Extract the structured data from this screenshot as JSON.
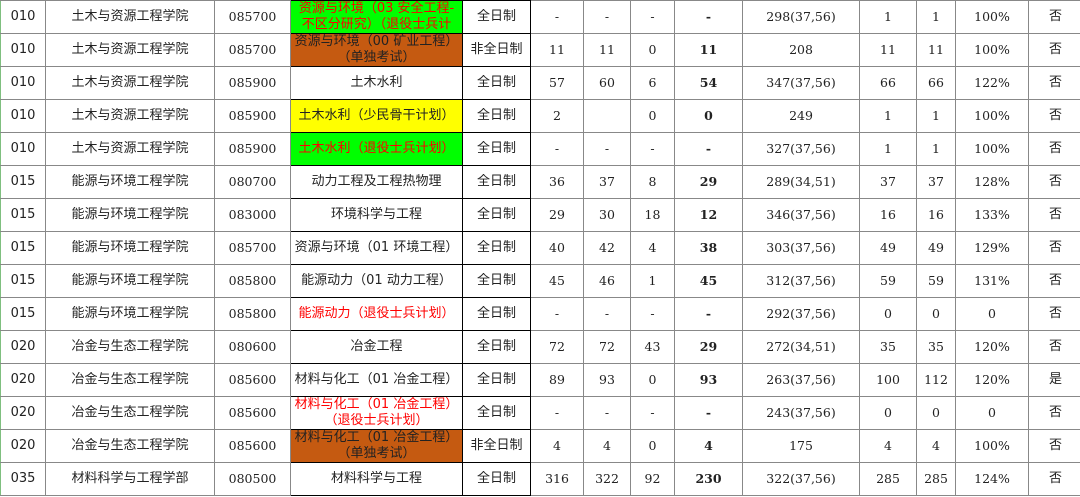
{
  "colors": {
    "green": "#00ff00",
    "brown": "#c55a11",
    "yellow": "#ffff00",
    "red": "#ff0000"
  },
  "rows": [
    {
      "code": "010",
      "college": "土木与资源工程学院",
      "major_code": "085700",
      "major": "资源与环境（03 安全工程-不区分研究）（退役士兵计划）",
      "style": "green-red",
      "type": "全日制",
      "c1": "-",
      "c2": "-",
      "c3": "-",
      "c4": "-",
      "score": "298(37,56)",
      "c5": "1",
      "c6": "1",
      "pct": "100%",
      "flag": "否"
    },
    {
      "code": "010",
      "college": "土木与资源工程学院",
      "major_code": "085700",
      "major": "资源与环境（00 矿业工程）（单独考试）",
      "style": "brown",
      "type": "非全日制",
      "c1": "11",
      "c2": "11",
      "c3": "0",
      "c4": "11",
      "score": "208",
      "c5": "11",
      "c6": "11",
      "pct": "100%",
      "flag": "否"
    },
    {
      "code": "010",
      "college": "土木与资源工程学院",
      "major_code": "085900",
      "major": "土木水利",
      "style": "",
      "type": "全日制",
      "c1": "57",
      "c2": "60",
      "c3": "6",
      "c4": "54",
      "score": "347(37,56)",
      "c5": "66",
      "c6": "66",
      "pct": "122%",
      "flag": "否"
    },
    {
      "code": "010",
      "college": "土木与资源工程学院",
      "major_code": "085900",
      "major": "土木水利（少民骨干计划）",
      "style": "yellow",
      "type": "全日制",
      "c1": "2",
      "c2": "",
      "c3": "0",
      "c4": "0",
      "score": "249",
      "c5": "1",
      "c6": "1",
      "pct": "100%",
      "flag": "否"
    },
    {
      "code": "010",
      "college": "土木与资源工程学院",
      "major_code": "085900",
      "major": "土木水利（退役士兵计划）",
      "style": "green-red",
      "type": "全日制",
      "c1": "-",
      "c2": "-",
      "c3": "-",
      "c4": "-",
      "score": "327(37,56)",
      "c5": "1",
      "c6": "1",
      "pct": "100%",
      "flag": "否"
    },
    {
      "code": "015",
      "college": "能源与环境工程学院",
      "major_code": "080700",
      "major": "动力工程及工程热物理",
      "style": "",
      "type": "全日制",
      "c1": "36",
      "c2": "37",
      "c3": "8",
      "c4": "29",
      "score": "289(34,51)",
      "c5": "37",
      "c6": "37",
      "pct": "128%",
      "flag": "否"
    },
    {
      "code": "015",
      "college": "能源与环境工程学院",
      "major_code": "083000",
      "major": "环境科学与工程",
      "style": "",
      "type": "全日制",
      "c1": "29",
      "c2": "30",
      "c3": "18",
      "c4": "12",
      "score": "346(37,56)",
      "c5": "16",
      "c6": "16",
      "pct": "133%",
      "flag": "否"
    },
    {
      "code": "015",
      "college": "能源与环境工程学院",
      "major_code": "085700",
      "major": "资源与环境（01 环境工程）",
      "style": "",
      "type": "全日制",
      "c1": "40",
      "c2": "42",
      "c3": "4",
      "c4": "38",
      "score": "303(37,56)",
      "c5": "49",
      "c6": "49",
      "pct": "129%",
      "flag": "否"
    },
    {
      "code": "015",
      "college": "能源与环境工程学院",
      "major_code": "085800",
      "major": "能源动力（01 动力工程）",
      "style": "",
      "type": "全日制",
      "c1": "45",
      "c2": "46",
      "c3": "1",
      "c4": "45",
      "score": "312(37,56)",
      "c5": "59",
      "c6": "59",
      "pct": "131%",
      "flag": "否"
    },
    {
      "code": "015",
      "college": "能源与环境工程学院",
      "major_code": "085800",
      "major": "能源动力（退役士兵计划）",
      "style": "red",
      "type": "全日制",
      "c1": "-",
      "c2": "-",
      "c3": "-",
      "c4": "-",
      "score": "292(37,56)",
      "c5": "0",
      "c6": "0",
      "pct": "0",
      "flag": "否"
    },
    {
      "code": "020",
      "college": "冶金与生态工程学院",
      "major_code": "080600",
      "major": "冶金工程",
      "style": "",
      "type": "全日制",
      "c1": "72",
      "c2": "72",
      "c3": "43",
      "c4": "29",
      "score": "272(34,51)",
      "c5": "35",
      "c6": "35",
      "pct": "120%",
      "flag": "否"
    },
    {
      "code": "020",
      "college": "冶金与生态工程学院",
      "major_code": "085600",
      "major": "材料与化工（01 冶金工程）",
      "style": "",
      "type": "全日制",
      "c1": "89",
      "c2": "93",
      "c3": "0",
      "c4": "93",
      "score": "263(37,56)",
      "c5": "100",
      "c6": "112",
      "pct": "120%",
      "flag": "是"
    },
    {
      "code": "020",
      "college": "冶金与生态工程学院",
      "major_code": "085600",
      "major": "材料与化工（01 冶金工程）（退役士兵计划）",
      "style": "red",
      "type": "全日制",
      "c1": "-",
      "c2": "-",
      "c3": "-",
      "c4": "-",
      "score": "243(37,56)",
      "c5": "0",
      "c6": "0",
      "pct": "0",
      "flag": "否"
    },
    {
      "code": "020",
      "college": "冶金与生态工程学院",
      "major_code": "085600",
      "major": "材料与化工（01 冶金工程）（单独考试）",
      "style": "brown",
      "type": "非全日制",
      "c1": "4",
      "c2": "4",
      "c3": "0",
      "c4": "4",
      "score": "175",
      "c5": "4",
      "c6": "4",
      "pct": "100%",
      "flag": "否"
    },
    {
      "code": "035",
      "college": "材料科学与工程学部",
      "major_code": "080500",
      "major": "材料科学与工程",
      "style": "",
      "type": "全日制",
      "c1": "316",
      "c2": "322",
      "c3": "92",
      "c4": "230",
      "score": "322(37,56)",
      "c5": "285",
      "c6": "285",
      "pct": "124%",
      "flag": "否"
    }
  ]
}
